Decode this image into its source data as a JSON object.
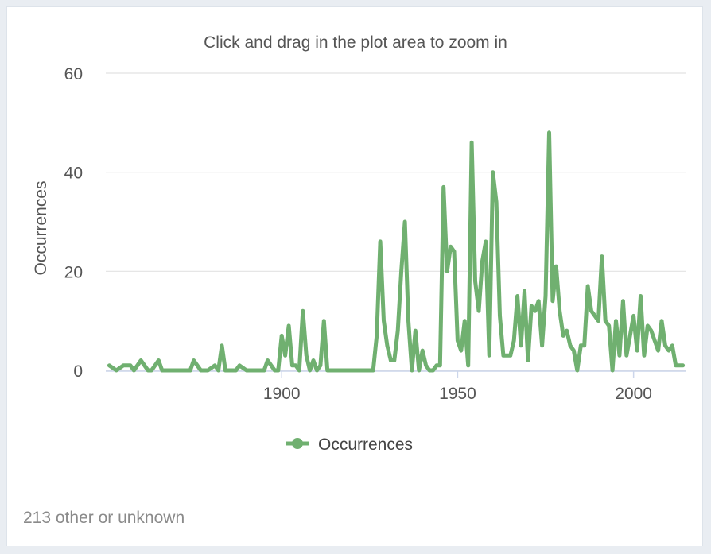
{
  "chart_data": {
    "type": "line",
    "title": "Click and drag in the plot area to zoom in",
    "xlabel": "",
    "ylabel": "Occurrences",
    "ylim": [
      0,
      60
    ],
    "xlim": [
      1850,
      2015
    ],
    "yticks": [
      "0",
      "20",
      "40",
      "60"
    ],
    "xticks": [
      "1900",
      "1950",
      "2000"
    ],
    "grid": true,
    "legend_position": "bottom-center",
    "series": [
      {
        "name": "Occurrences",
        "color": "#70b070",
        "x": [
          1851,
          1853,
          1855,
          1857,
          1858,
          1860,
          1862,
          1863,
          1865,
          1866,
          1868,
          1870,
          1872,
          1874,
          1875,
          1877,
          1879,
          1881,
          1882,
          1883,
          1884,
          1886,
          1887,
          1888,
          1890,
          1892,
          1894,
          1895,
          1896,
          1898,
          1899,
          1900,
          1901,
          1902,
          1903,
          1904,
          1905,
          1906,
          1907,
          1908,
          1909,
          1910,
          1911,
          1912,
          1913,
          1915,
          1920,
          1925,
          1926,
          1927,
          1928,
          1929,
          1930,
          1931,
          1932,
          1933,
          1934,
          1935,
          1936,
          1937,
          1938,
          1939,
          1940,
          1941,
          1942,
          1943,
          1944,
          1945,
          1946,
          1947,
          1948,
          1949,
          1950,
          1951,
          1952,
          1953,
          1954,
          1955,
          1956,
          1957,
          1958,
          1959,
          1960,
          1961,
          1962,
          1963,
          1964,
          1965,
          1966,
          1967,
          1968,
          1969,
          1970,
          1971,
          1972,
          1973,
          1974,
          1975,
          1976,
          1977,
          1978,
          1979,
          1980,
          1981,
          1982,
          1983,
          1984,
          1985,
          1986,
          1987,
          1988,
          1989,
          1990,
          1991,
          1992,
          1993,
          1994,
          1995,
          1996,
          1997,
          1998,
          1999,
          2000,
          2001,
          2002,
          2003,
          2004,
          2005,
          2006,
          2007,
          2008,
          2009,
          2010,
          2011,
          2012,
          2013,
          2014
        ],
        "values": [
          1,
          0,
          1,
          1,
          0,
          2,
          0,
          0,
          2,
          0,
          0,
          0,
          0,
          0,
          2,
          0,
          0,
          1,
          0,
          5,
          0,
          0,
          0,
          1,
          0,
          0,
          0,
          0,
          2,
          0,
          0,
          7,
          3,
          9,
          1,
          1,
          0,
          12,
          3,
          0,
          2,
          0,
          1,
          10,
          0,
          0,
          0,
          0,
          0,
          7,
          26,
          10,
          5,
          2,
          2,
          8,
          20,
          30,
          10,
          0,
          8,
          0,
          4,
          1,
          0,
          0,
          1,
          1,
          37,
          20,
          25,
          24,
          6,
          4,
          10,
          1,
          46,
          18,
          12,
          22,
          26,
          3,
          40,
          34,
          11,
          3,
          3,
          3,
          6,
          15,
          5,
          16,
          2,
          13,
          12,
          14,
          5,
          15,
          48,
          14,
          21,
          12,
          7,
          8,
          5,
          4,
          0,
          5,
          5,
          17,
          12,
          11,
          10,
          23,
          10,
          9,
          0,
          10,
          3,
          14,
          3,
          7,
          11,
          4,
          15,
          3,
          9,
          8,
          6,
          4,
          10,
          5,
          4,
          5,
          1,
          1,
          1
        ]
      }
    ]
  },
  "footer": {
    "text": "213 other or unknown"
  }
}
